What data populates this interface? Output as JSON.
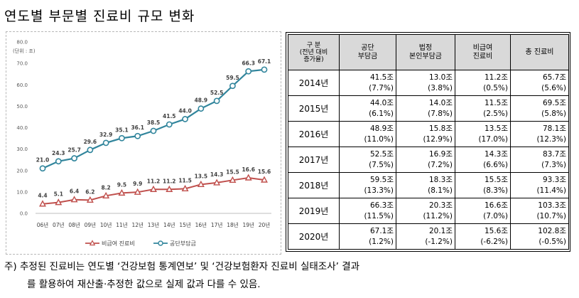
{
  "title": "연도별 부문별 진료비 규모 변화",
  "chart_data": {
    "type": "line",
    "unit_label": "(단위 : 조)",
    "ylim": [
      0,
      80
    ],
    "yticks": [
      "0.0",
      "10.0",
      "20.0",
      "30.0",
      "40.0",
      "50.0",
      "60.0",
      "70.0",
      "80.0"
    ],
    "ytick_values": [
      0,
      10,
      20,
      30,
      40,
      50,
      60,
      70,
      80
    ],
    "categories": [
      "06년",
      "07년",
      "08년",
      "09년",
      "10년",
      "11년",
      "12년",
      "13년",
      "14년",
      "15년",
      "16년",
      "17년",
      "18년",
      "19년",
      "20년"
    ],
    "series": [
      {
        "name": "비급여 진료비",
        "color": "#c0504d",
        "marker": "triangle",
        "values": [
          4.4,
          5.1,
          6.4,
          6.2,
          8.2,
          9.5,
          9.9,
          11.2,
          11.2,
          11.5,
          13.5,
          14.3,
          15.5,
          16.6,
          15.6
        ],
        "labels": [
          "4.4",
          "5.1",
          "6.4",
          "6.2",
          "8.2",
          "9.5",
          "9.9",
          "11.2",
          "11.2",
          "11.5",
          "13.5",
          "14.3",
          "15.5",
          "16.6",
          "15.6"
        ]
      },
      {
        "name": "공단부담금",
        "color": "#31859c",
        "marker": "circle",
        "values": [
          21.0,
          24.3,
          25.7,
          29.6,
          32.9,
          35.1,
          36.1,
          38.5,
          41.5,
          44.0,
          48.9,
          52.5,
          59.5,
          66.3,
          67.1
        ],
        "labels": [
          "21.0",
          "24.3",
          "25.7",
          "29.6",
          "32.9",
          "35.1",
          "36.1",
          "38.5",
          "41.5",
          "44.0",
          "48.9",
          "52.5",
          "59.5",
          "66.3",
          "67.1"
        ]
      }
    ]
  },
  "table": {
    "headers": {
      "corner": [
        "구 분",
        "(전년 대비",
        "증가율)"
      ],
      "col1": [
        "공단",
        "부담금"
      ],
      "col2": [
        "법정",
        "본인부담금"
      ],
      "col3": [
        "비급여",
        "진료비"
      ],
      "col4": "총 진료비"
    },
    "rows": [
      {
        "year": "2014년",
        "c1": "41.5조",
        "c1p": "(7.7%)",
        "c2": "13.0조",
        "c2p": "(3.8%)",
        "c3": "11.2조",
        "c3p": "(0.5%)",
        "c4": "65.7조",
        "c4p": "(5.6%)"
      },
      {
        "year": "2015년",
        "c1": "44.0조",
        "c1p": "(6.1%)",
        "c2": "14.0조",
        "c2p": "(7.8%)",
        "c3": "11.5조",
        "c3p": "(2.5%)",
        "c4": "69.5조",
        "c4p": "(5.8%)"
      },
      {
        "year": "2016년",
        "c1": "48.9조",
        "c1p": "(11.0%)",
        "c2": "15.8조",
        "c2p": "(12.9%)",
        "c3": "13.5조",
        "c3p": "(17.0%)",
        "c4": "78.1조",
        "c4p": "(12.3%)"
      },
      {
        "year": "2017년",
        "c1": "52.5조",
        "c1p": "(7.5%)",
        "c2": "16.9조",
        "c2p": "(7.2%)",
        "c3": "14.3조",
        "c3p": "(6.6%)",
        "c4": "83.7조",
        "c4p": "(7.3%)"
      },
      {
        "year": "2018년",
        "c1": "59.5조",
        "c1p": "(13.3%)",
        "c2": "18.3조",
        "c2p": "(8.1%)",
        "c3": "15.5조",
        "c3p": "(8.3%)",
        "c4": "93.3조",
        "c4p": "(11.4%)"
      },
      {
        "year": "2019년",
        "c1": "66.3조",
        "c1p": "(11.5%)",
        "c2": "20.3조",
        "c2p": "(11.2%)",
        "c3": "16.6조",
        "c3p": "(7.0%)",
        "c4": "103.3조",
        "c4p": "(10.7%)"
      },
      {
        "year": "2020년",
        "c1": "67.1조",
        "c1p": "(1.2%)",
        "c2": "20.1조",
        "c2p": "(-1.2%)",
        "c3": "15.6조",
        "c3p": "(-6.2%)",
        "c4": "102.8조",
        "c4p": "(-0.5%)"
      }
    ]
  },
  "note": {
    "line1": "주) 추정된 진료비는 연도별 ‘건강보험 통계연보’ 및 ‘건강보험환자 진료비 실태조사’ 결과",
    "line2": "를 활용하여 재산출·추정한 값으로 실제 값과 다를 수 있음."
  }
}
